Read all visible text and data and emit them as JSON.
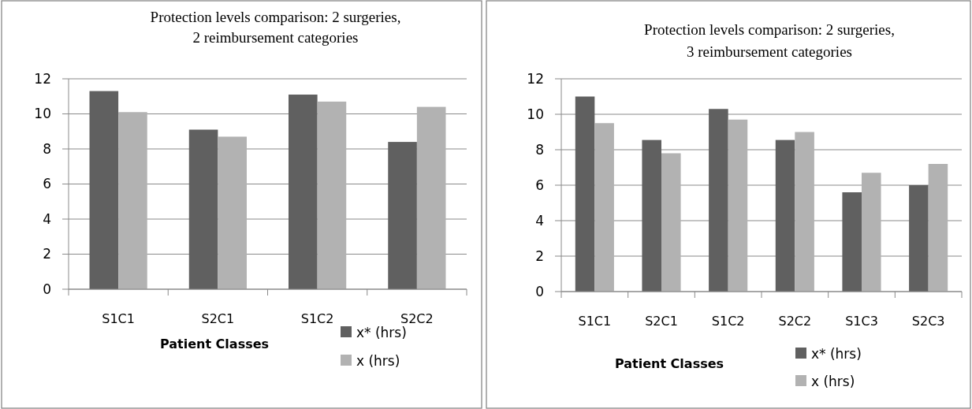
{
  "chart_data": [
    {
      "type": "bar",
      "title": "Protection levels comparison: 2 surgeries, 2 reimbursement categories",
      "xlabel": "Patient Classes",
      "categories": [
        "S1C1",
        "S2C1",
        "S1C2",
        "S2C2"
      ],
      "series": [
        {
          "name": "x* (hrs)",
          "color": "#606060",
          "values": [
            11.3,
            9.1,
            11.1,
            8.4
          ]
        },
        {
          "name": "x (hrs)",
          "color": "#b2b2b2",
          "values": [
            10.1,
            8.7,
            10.7,
            10.4
          ]
        }
      ],
      "ylim": [
        0,
        12
      ],
      "yticks": [
        0,
        2,
        4,
        6,
        8,
        10,
        12
      ],
      "grid": "y",
      "legend": "bottom right"
    },
    {
      "type": "bar",
      "title": "Protection levels comparison: 2 surgeries, 3 reimbursement categories",
      "xlabel": "Patient Classes",
      "categories": [
        "S1C1",
        "S2C1",
        "S1C2",
        "S2C2",
        "S1C3",
        "S2C3"
      ],
      "series": [
        {
          "name": "x* (hrs)",
          "color": "#606060",
          "values": [
            11.0,
            8.55,
            10.3,
            8.55,
            5.6,
            6.0
          ]
        },
        {
          "name": "x (hrs)",
          "color": "#b2b2b2",
          "values": [
            9.5,
            7.8,
            9.7,
            9.0,
            6.7,
            7.2
          ]
        }
      ],
      "ylim": [
        0,
        12
      ],
      "yticks": [
        0,
        2,
        4,
        6,
        8,
        10,
        12
      ],
      "grid": "y",
      "legend": "bottom right"
    }
  ]
}
